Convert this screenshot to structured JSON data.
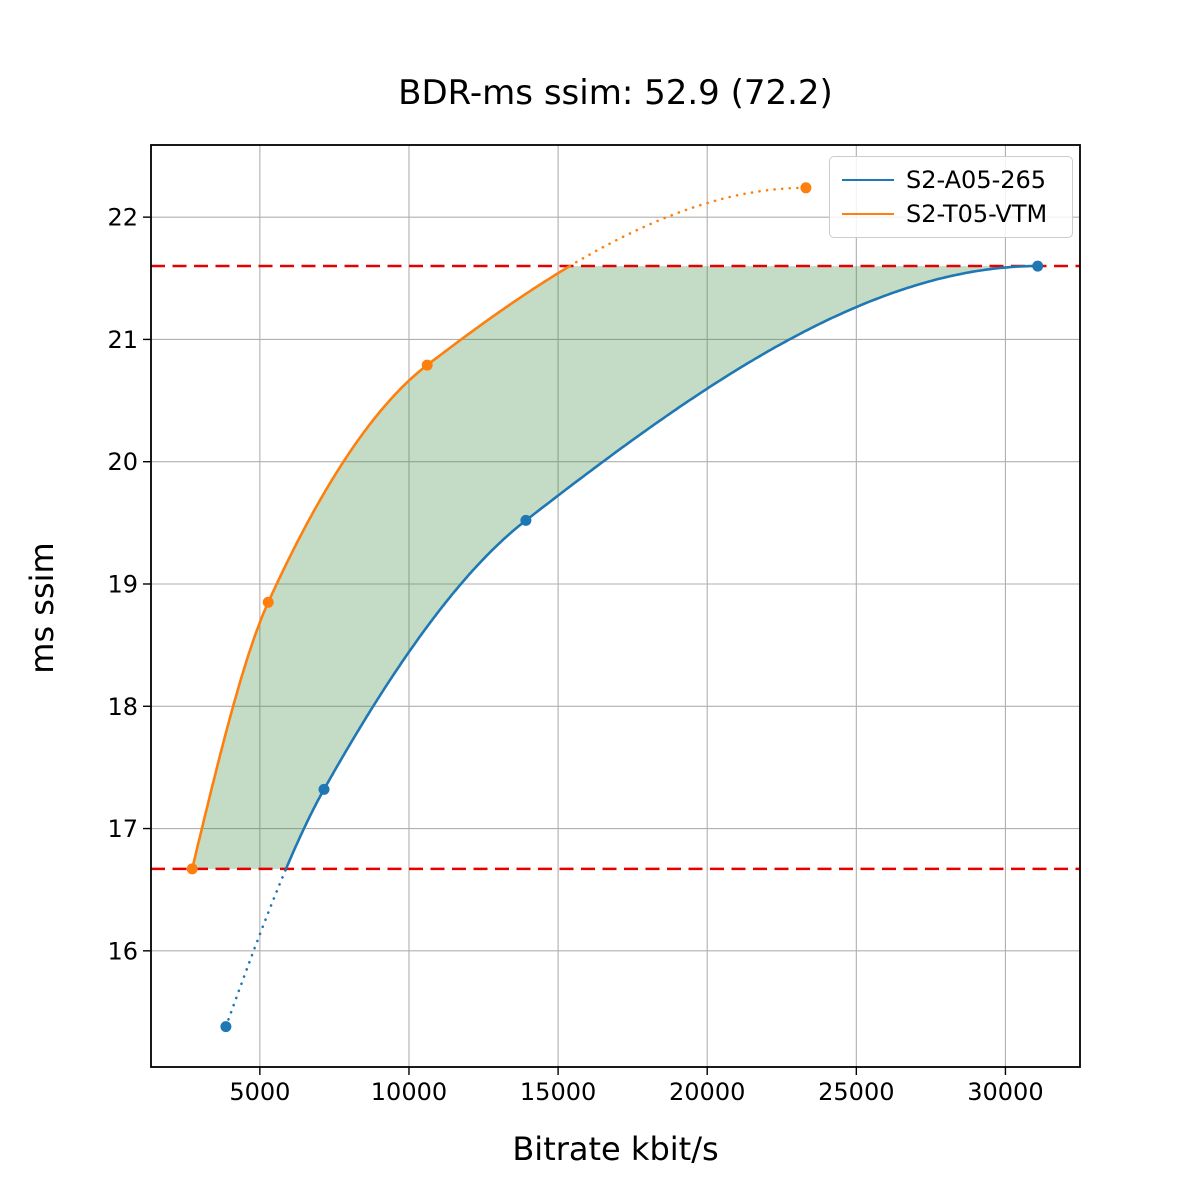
{
  "chart_data": {
    "type": "line",
    "title": "BDR-ms ssim: 52.9 (72.2)",
    "xlabel": "Bitrate kbit/s",
    "ylabel": "ms ssim",
    "xlim": [
      1350,
      32500
    ],
    "ylim": [
      15.05,
      22.59
    ],
    "xticks": [
      5000,
      10000,
      15000,
      20000,
      25000,
      30000
    ],
    "yticks": [
      16,
      17,
      18,
      19,
      20,
      21,
      22
    ],
    "grid": true,
    "grid_color": "#b0b0b0",
    "axis_color": "#000000",
    "legend_position": "upper right",
    "series": [
      {
        "name": "S2-A05-265",
        "color": "#1f77b4",
        "x": [
          3860,
          7150,
          13920,
          31080
        ],
        "y": [
          15.38,
          17.32,
          19.52,
          21.6
        ],
        "interpolation": "pchip",
        "note": "dotted below lower reference line, solid above"
      },
      {
        "name": "S2-T05-VTM",
        "color": "#ff7f0e",
        "x": [
          2730,
          5280,
          10610,
          23310
        ],
        "y": [
          16.67,
          18.85,
          20.79,
          22.24
        ],
        "interpolation": "pchip",
        "note": "solid below upper reference line, dotted above"
      }
    ],
    "reference_lines": {
      "color": "#e60000",
      "style": "dashed",
      "lower": 16.67,
      "upper": 21.6
    },
    "shaded_region": {
      "between": [
        "S2-T05-VTM",
        "S2-A05-265"
      ],
      "y_range": [
        16.67,
        21.6
      ],
      "color": "#3a8c3f",
      "opacity": 0.3
    }
  }
}
